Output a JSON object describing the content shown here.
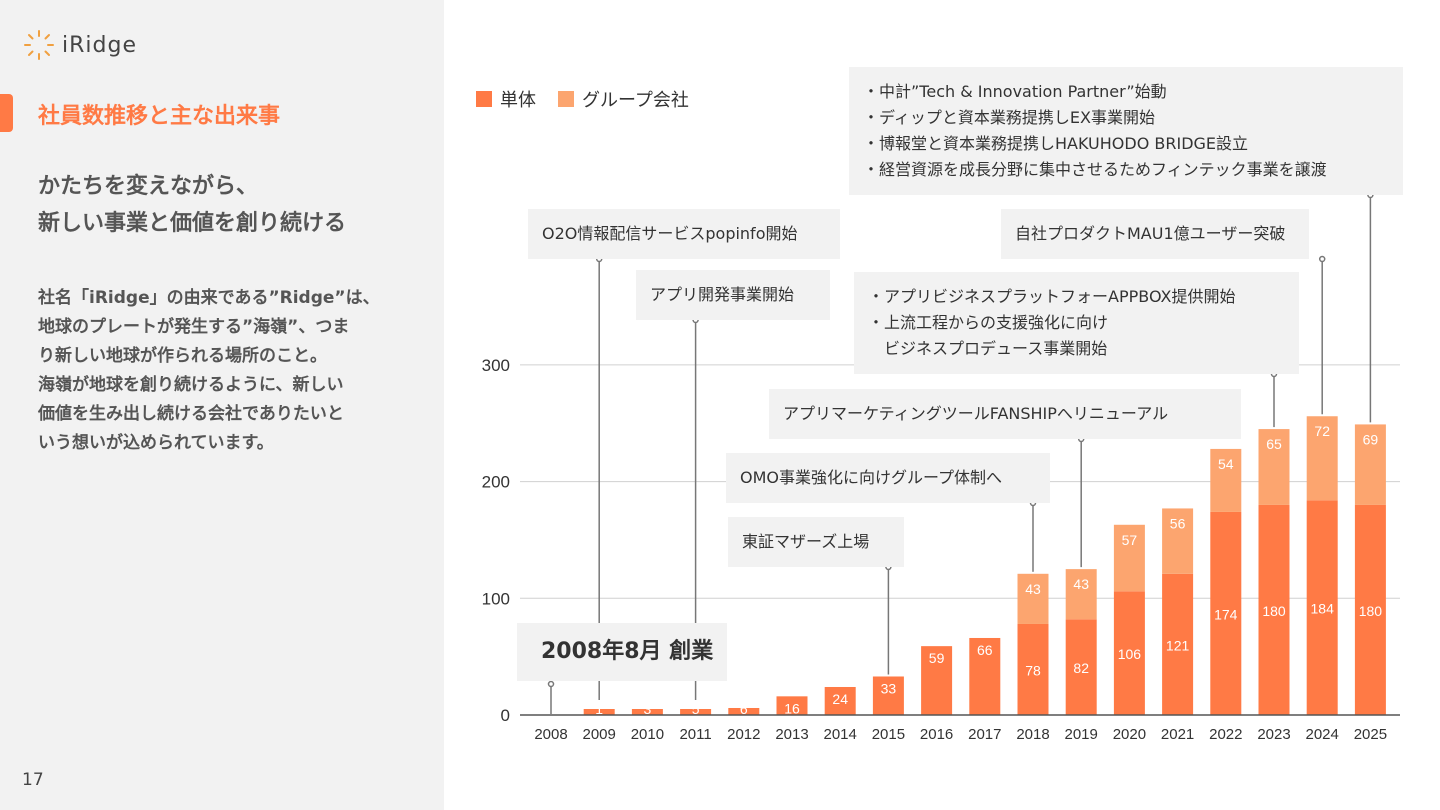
{
  "brand": {
    "name": "iRidge"
  },
  "section_title": "社員数推移と主な出来事",
  "headline": [
    "かたちを変えながら、",
    "新しい事業と価値を創り続ける"
  ],
  "description": [
    "社名「iRidge」の由来である”Ridge”は、",
    "地球のプレートが発生する”海嶺”、つま",
    "り新しい地球が作られる場所のこと。",
    "海嶺が地球を創り続けるように、新しい",
    "価値を生み出し続ける会社でありたいと",
    "いう想いが込められています。"
  ],
  "page_number": "17",
  "legend": {
    "single": "単体",
    "group": "グループ会社"
  },
  "colors": {
    "accent": "#ff7a45",
    "single": "#ff7a45",
    "group": "#fca56f",
    "panel": "#f2f2f2"
  },
  "chart_data": {
    "type": "bar",
    "stacked": true,
    "categories": [
      "2008",
      "2009",
      "2010",
      "2011",
      "2012",
      "2013",
      "2014",
      "2015",
      "2016",
      "2017",
      "2018",
      "2019",
      "2020",
      "2021",
      "2022",
      "2023",
      "2024",
      "2025"
    ],
    "series": [
      {
        "name": "単体",
        "values": [
          0,
          1,
          3,
          5,
          6,
          16,
          24,
          33,
          59,
          66,
          78,
          82,
          106,
          121,
          174,
          180,
          184,
          180
        ]
      },
      {
        "name": "グループ会社",
        "values": [
          0,
          0,
          0,
          0,
          0,
          0,
          0,
          0,
          0,
          0,
          43,
          43,
          57,
          56,
          54,
          65,
          72,
          69
        ]
      }
    ],
    "yticks": [
      "0",
      "100",
      "200",
      "300"
    ],
    "ylim": [
      0,
      330
    ]
  },
  "annotations": [
    {
      "year": "2008",
      "lines": [
        "2008年8月 創業"
      ]
    },
    {
      "year": "2009",
      "lines": [
        "O2O情報配信サービスpopinfo開始"
      ]
    },
    {
      "year": "2011",
      "lines": [
        "アプリ開発事業開始"
      ]
    },
    {
      "year": "2015",
      "lines": [
        "東証マザーズ上場"
      ]
    },
    {
      "year": "2018",
      "lines": [
        "OMO事業強化に向けグループ体制へ"
      ]
    },
    {
      "year": "2019",
      "lines": [
        "アプリマーケティングツールFANSHIPへリニューアル"
      ]
    },
    {
      "year": "2023",
      "lines": [
        "・アプリビジネスプラットフォーAPPBOX提供開始",
        "・上流工程からの支援強化に向け",
        "　ビジネスプロデュース事業開始"
      ]
    },
    {
      "year": "2024",
      "lines": [
        "自社プロダクトMAU1億ユーザー突破"
      ]
    },
    {
      "year": "2025",
      "lines": [
        "・中計”Tech & Innovation Partner”始動",
        "・ディップと資本業務提携しEX事業開始",
        "・博報堂と資本業務提携しHAKUHODO BRIDGE設立",
        "・経営資源を成長分野に集中させるためフィンテック事業を譲渡"
      ]
    }
  ]
}
